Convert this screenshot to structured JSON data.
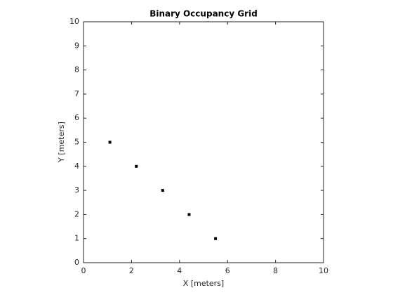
{
  "chart_data": {
    "type": "scatter",
    "title": "Binary Occupancy Grid",
    "x_label": "X [meters]",
    "y_label": "Y [meters]",
    "x": [
      1.1,
      2.2,
      3.3,
      4.4,
      5.5
    ],
    "values": [
      5,
      4,
      3,
      2,
      1
    ],
    "color": "#000000",
    "xlim": [
      0,
      10
    ],
    "xticks": [
      0,
      2,
      4,
      6,
      8,
      10
    ],
    "ylim": [
      0,
      10
    ],
    "yticks": [
      0,
      1,
      2,
      3,
      4,
      5,
      6,
      7,
      8,
      9,
      10
    ]
  }
}
